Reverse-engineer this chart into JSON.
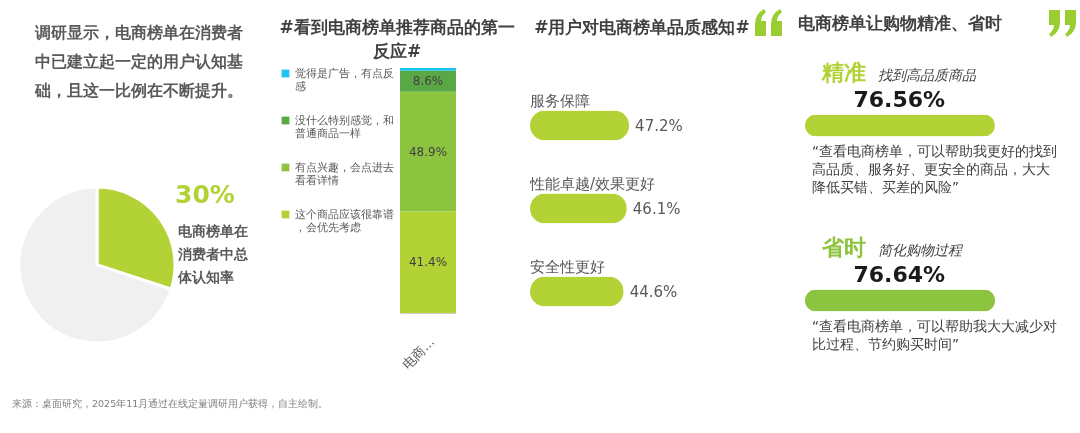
{
  "chart_data": [
    {
      "type": "pie",
      "title": "调研显示，电商榜单在消费者中已建立起一定的用户认知基础，且这一比例在不断提升。",
      "categories": [
        "电商榜单在消费者中总体认知率",
        null
      ],
      "values": [
        30,
        70
      ],
      "colors": [
        "#b2d235",
        "#f0f0f0"
      ],
      "value_labels": [
        "30%",
        null
      ],
      "annotations": [
        "来源：桌面研究，2025年11月通过在线定量调研用户获得，自主绘制。"
      ]
    },
    {
      "type": "bar",
      "title": "#看到电商榜单推荐商品的第一反应#",
      "categories": [
        "电商..."
      ],
      "stacked": true,
      "legend": "left",
      "series": [
        {
          "name": "这个商品应该很靠谱，会优先考虑",
          "color": "#b2d235",
          "values": [
            41.4
          ],
          "value_labels": [
            "41.4%"
          ]
        },
        {
          "name": "有点兴趣，会点进去看看详情",
          "color": "#8cc43f",
          "values": [
            48.9
          ],
          "value_labels": [
            "48.9%"
          ]
        },
        {
          "name": "没什么特别感觉，和普通商品一样",
          "color": "#5aa845",
          "values": [
            8.6
          ],
          "value_labels": [
            "8.6%"
          ]
        },
        {
          "name": "觉得是广告，有点反感",
          "color": "#1fc4ef",
          "values": [
            1.1
          ],
          "value_labels": [
            null
          ]
        }
      ]
    },
    {
      "type": "bar",
      "orientation": "horizontal",
      "title": "#用户对电商榜单品质感知#",
      "categories": [
        "服务保障",
        "性能卓越/效果更好",
        "安全性更好"
      ],
      "values": [
        47.2,
        46.1,
        44.6
      ],
      "value_labels": [
        "47.2%",
        "46.1%",
        "44.6%"
      ],
      "color": "#b2d235"
    },
    {
      "type": "bar",
      "orientation": "horizontal",
      "title": "电商榜单让购物精准、省时",
      "categories": [
        "精准",
        "省时"
      ],
      "values": [
        76.56,
        76.64
      ],
      "colors": [
        "#b2d235",
        "#8cc43f"
      ],
      "value_labels": [
        "76.56%",
        "76.64%"
      ],
      "annotations": [
        "找到高品质商品",
        "“查看电商榜单，可以帮助我更好的找到高品质、服务好、更安全的商品，大大降低买错、买差的风险”",
        "简化购物过程",
        "“查看电商榜单，可以帮助我大大减少对比过程、节约购买时间”"
      ]
    }
  ]
}
